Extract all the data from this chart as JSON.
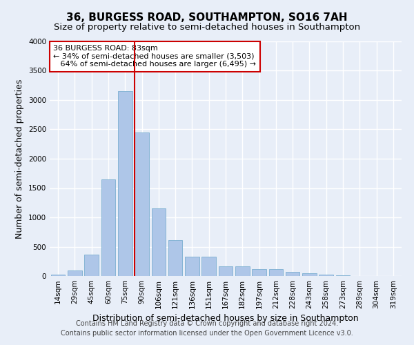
{
  "title": "36, BURGESS ROAD, SOUTHAMPTON, SO16 7AH",
  "subtitle": "Size of property relative to semi-detached houses in Southampton",
  "xlabel": "Distribution of semi-detached houses by size in Southampton",
  "ylabel": "Number of semi-detached properties",
  "categories": [
    "14sqm",
    "29sqm",
    "45sqm",
    "60sqm",
    "75sqm",
    "90sqm",
    "106sqm",
    "121sqm",
    "136sqm",
    "151sqm",
    "167sqm",
    "182sqm",
    "197sqm",
    "212sqm",
    "228sqm",
    "243sqm",
    "258sqm",
    "273sqm",
    "289sqm",
    "304sqm",
    "319sqm"
  ],
  "values": [
    20,
    100,
    360,
    1650,
    3150,
    2450,
    1150,
    610,
    330,
    330,
    160,
    160,
    120,
    115,
    65,
    45,
    28,
    12,
    5,
    2,
    1
  ],
  "bar_color": "#aec6e8",
  "bar_edge_color": "#7aaed0",
  "vline_color": "#cc0000",
  "annotation_line1": "36 BURGESS ROAD: 83sqm",
  "annotation_line2": "← 34% of semi-detached houses are smaller (3,503)",
  "annotation_line3": "   64% of semi-detached houses are larger (6,495) →",
  "annotation_box_color": "white",
  "annotation_box_edge": "#cc0000",
  "ylim": [
    0,
    4000
  ],
  "yticks": [
    0,
    500,
    1000,
    1500,
    2000,
    2500,
    3000,
    3500,
    4000
  ],
  "footer1": "Contains HM Land Registry data © Crown copyright and database right 2024.",
  "footer2": "Contains public sector information licensed under the Open Government Licence v3.0.",
  "bg_color": "#e8eef8",
  "plot_bg_color": "#e8eef8",
  "grid_color": "white",
  "title_fontsize": 11,
  "subtitle_fontsize": 9.5,
  "axis_label_fontsize": 9,
  "tick_fontsize": 7.5,
  "annotation_fontsize": 8,
  "footer_fontsize": 7
}
